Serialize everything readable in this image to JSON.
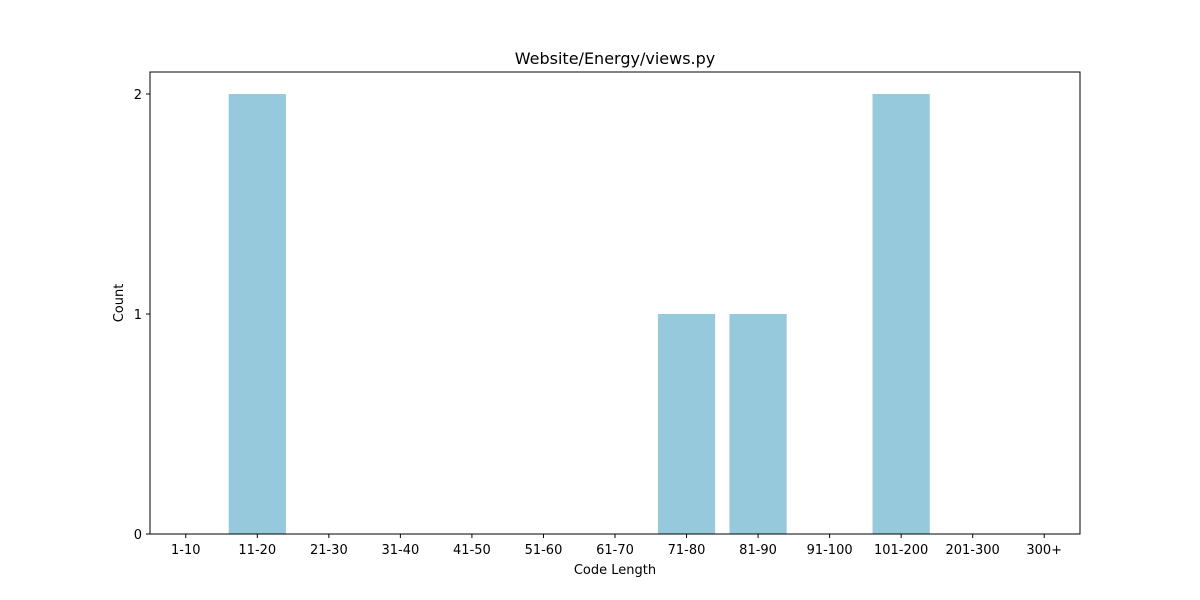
{
  "chart_data": {
    "type": "bar",
    "title": "Website/Energy/views.py",
    "xlabel": "Code Length",
    "ylabel": "Count",
    "categories": [
      "1-10",
      "11-20",
      "21-30",
      "31-40",
      "41-50",
      "51-60",
      "61-70",
      "71-80",
      "81-90",
      "91-100",
      "101-200",
      "201-300",
      "300+"
    ],
    "values": [
      0,
      2,
      0,
      0,
      0,
      0,
      0,
      1,
      1,
      0,
      2,
      0,
      0
    ],
    "yticks": [
      "0",
      "1",
      "2"
    ],
    "ylim": [
      0,
      2.1
    ],
    "grid": false,
    "bar_color": "#96c9dc"
  }
}
